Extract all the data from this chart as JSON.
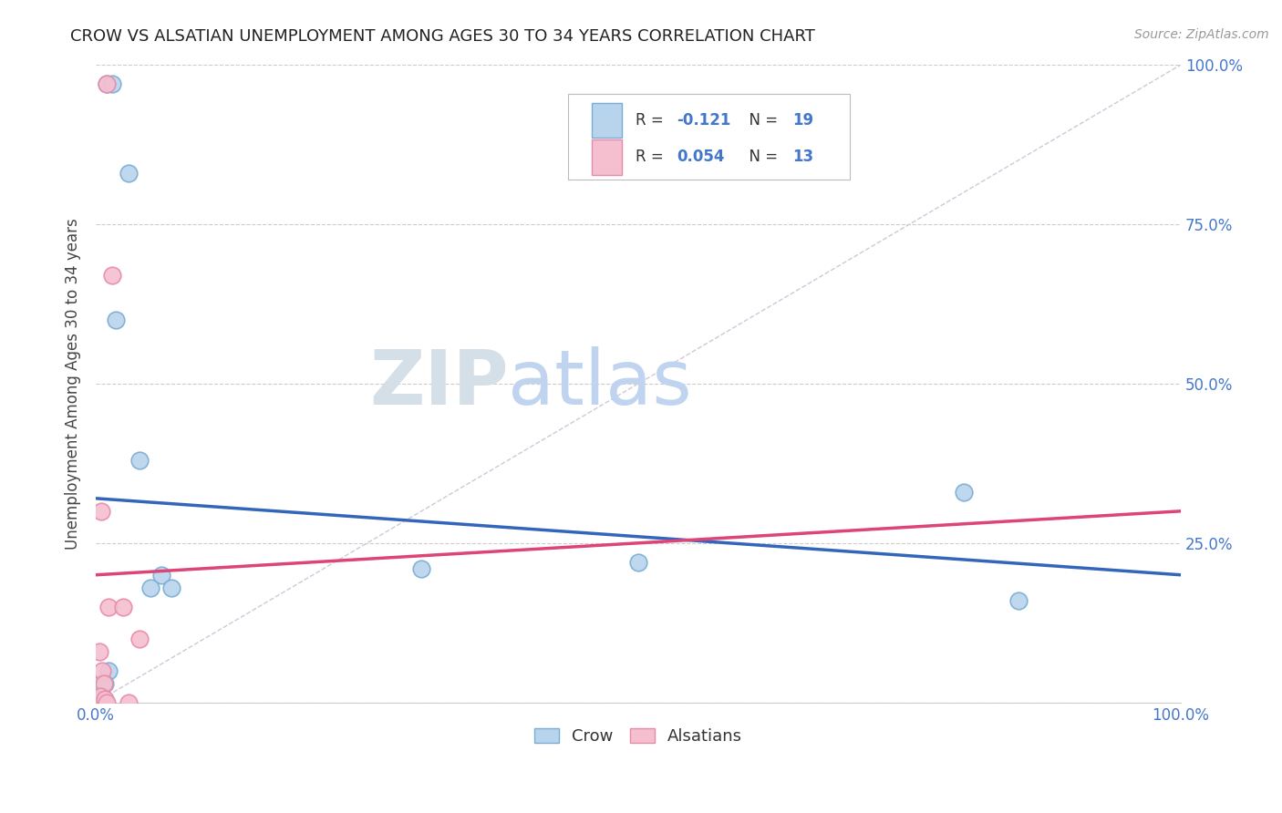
{
  "title": "CROW VS ALSATIAN UNEMPLOYMENT AMONG AGES 30 TO 34 YEARS CORRELATION CHART",
  "source": "Source: ZipAtlas.com",
  "ylabel": "Unemployment Among Ages 30 to 34 years",
  "crow_R": -0.121,
  "crow_N": 19,
  "alsatian_R": 0.054,
  "alsatian_N": 13,
  "crow_color": "#b8d4ed",
  "alsatian_color": "#f5bfcf",
  "crow_edge_color": "#7aadd4",
  "alsatian_edge_color": "#e88aaa",
  "trend_crow_color": "#3366bb",
  "trend_alsatian_color": "#dd4477",
  "diagonal_color": "#d0c8d8",
  "crow_x": [
    1.0,
    1.5,
    3.0,
    1.8,
    4.0,
    6.0,
    7.0,
    5.0,
    30.0,
    50.0,
    1.2,
    0.5,
    0.8,
    0.4,
    0.6,
    0.3,
    0.7,
    80.0,
    85.0
  ],
  "crow_y": [
    97.0,
    97.0,
    83.0,
    60.0,
    38.0,
    20.0,
    18.0,
    18.0,
    21.0,
    22.0,
    5.0,
    3.0,
    3.0,
    1.0,
    1.0,
    0.5,
    0.5,
    33.0,
    16.0
  ],
  "alsatian_x": [
    1.0,
    1.5,
    0.5,
    1.2,
    2.5,
    4.0,
    0.3,
    0.6,
    0.7,
    0.4,
    0.8,
    1.0,
    3.0
  ],
  "alsatian_y": [
    97.0,
    67.0,
    30.0,
    15.0,
    15.0,
    10.0,
    8.0,
    5.0,
    3.0,
    1.0,
    0.5,
    0.0,
    0.0
  ],
  "marker_size": 180,
  "xlim": [
    0,
    100
  ],
  "ylim": [
    0,
    100
  ],
  "xticks": [
    0,
    10,
    20,
    30,
    40,
    50,
    60,
    70,
    80,
    90,
    100
  ],
  "yticks": [
    0,
    25,
    50,
    75,
    100
  ],
  "xtick_labels": [
    "0.0%",
    "",
    "",
    "",
    "",
    "",
    "",
    "",
    "",
    "",
    "100.0%"
  ],
  "ytick_right_labels": [
    "",
    "25.0%",
    "50.0%",
    "75.0%",
    "100.0%"
  ],
  "background_color": "#ffffff",
  "grid_color": "#cccccc",
  "title_color": "#222222",
  "axis_label_color": "#444444",
  "tick_label_color": "#4477cc",
  "watermark_zip_color": "#c8d8ec",
  "watermark_atlas_color": "#c0d8f0"
}
